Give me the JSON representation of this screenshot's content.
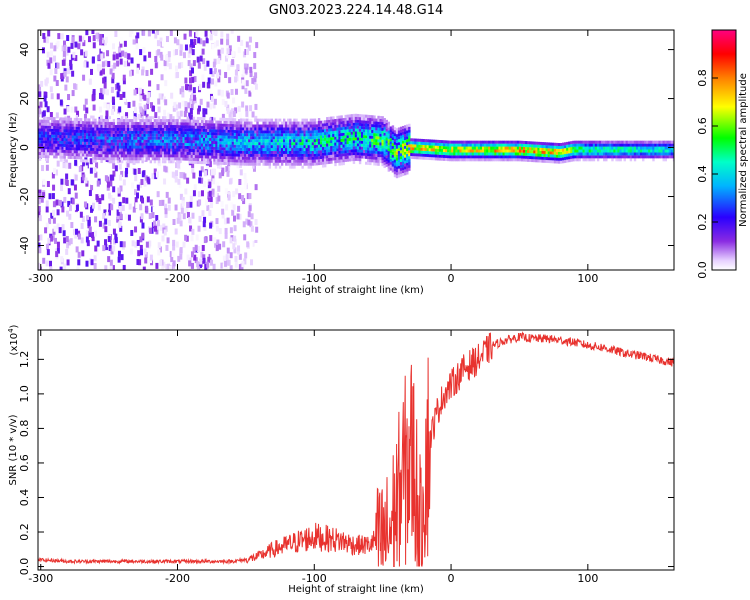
{
  "title": "GN03.2023.224.14.48.G14",
  "chart_data": [
    {
      "type": "heatmap",
      "xlabel": "Height of straight line (km)",
      "ylabel": "Frequency (Hz)",
      "xlim": [
        -302,
        163
      ],
      "ylim": [
        -50,
        48
      ],
      "x_ticks": [
        -300,
        -200,
        -100,
        0,
        100
      ],
      "x_tick_labels": [
        "-300",
        "-200",
        "-100",
        "0",
        "100"
      ],
      "y_ticks": [
        -40,
        -20,
        0,
        20,
        40
      ],
      "y_tick_labels": [
        "-40",
        "-20",
        "0",
        "20",
        "40"
      ],
      "colorbar": {
        "label": "Normalized spectral amplitude",
        "range": [
          0,
          1
        ],
        "ticks": [
          0.0,
          0.2,
          0.4,
          0.6,
          0.8
        ],
        "tick_labels": [
          "0.0",
          "0.2",
          "0.4",
          "0.6",
          "0.8"
        ],
        "colormap": "rainbow: white - violet - blue - cyan - green - yellow - red - magenta"
      },
      "ridge_frequency": {
        "x": [
          -300,
          -250,
          -200,
          -150,
          -100,
          -70,
          -50,
          -40,
          -30,
          0,
          50,
          80,
          90,
          163
        ],
        "y": [
          4,
          3,
          3,
          2,
          2,
          4,
          3,
          -2,
          0,
          -1,
          -1,
          -2,
          -1,
          -1
        ]
      },
      "ridge_peak_amplitude": {
        "x": [
          -300,
          -200,
          -150,
          -100,
          -60,
          -40,
          -30,
          0,
          50,
          80,
          100,
          163
        ],
        "y": [
          0.3,
          0.4,
          0.45,
          0.55,
          0.6,
          0.75,
          0.85,
          0.8,
          0.9,
          0.85,
          0.6,
          0.5
        ]
      }
    },
    {
      "type": "line",
      "xlabel": "Height of straight line (km)",
      "ylabel": "SNR (10 * v/v)",
      "y_multiplier": "(x10",
      "y_multiplier_exp": "4",
      "y_multiplier_close": ")",
      "xlim": [
        -302,
        163
      ],
      "ylim": [
        -0.02,
        1.37
      ],
      "x_ticks": [
        -300,
        -200,
        -100,
        0,
        100
      ],
      "x_tick_labels": [
        "-300",
        "-200",
        "-100",
        "0",
        "100"
      ],
      "y_ticks": [
        0.0,
        0.2,
        0.4,
        0.6,
        0.8,
        1.0,
        1.2
      ],
      "y_tick_labels": [
        "0.0",
        "0.2",
        "0.4",
        "0.6",
        "0.8",
        "1.0",
        "1.2"
      ],
      "color": "#e8322e",
      "series": [
        {
          "x": [
            -302,
            -280,
            -260,
            -240,
            -220,
            -200,
            -180,
            -160,
            -150,
            -140,
            -130,
            -120,
            -110,
            -100,
            -90,
            -80,
            -70,
            -60,
            -50,
            -45,
            -40,
            -35,
            -30,
            -27,
            -25,
            -22,
            -20,
            -15,
            -10,
            -5,
            0,
            5,
            10,
            20,
            30,
            40,
            50,
            60,
            70,
            80,
            90,
            100,
            110,
            120,
            130,
            140,
            150,
            163
          ],
          "y": [
            0.03,
            0.02,
            0.02,
            0.02,
            0.02,
            0.02,
            0.02,
            0.02,
            0.03,
            0.05,
            0.08,
            0.1,
            0.12,
            0.14,
            0.13,
            0.12,
            0.1,
            0.1,
            0.15,
            0.2,
            0.35,
            0.5,
            0.65,
            0.6,
            0.4,
            0.2,
            0.55,
            0.75,
            0.9,
            1.0,
            1.05,
            1.1,
            1.15,
            1.2,
            1.28,
            1.31,
            1.33,
            1.32,
            1.32,
            1.31,
            1.3,
            1.28,
            1.27,
            1.25,
            1.23,
            1.22,
            1.2,
            1.18
          ]
        }
      ]
    }
  ]
}
